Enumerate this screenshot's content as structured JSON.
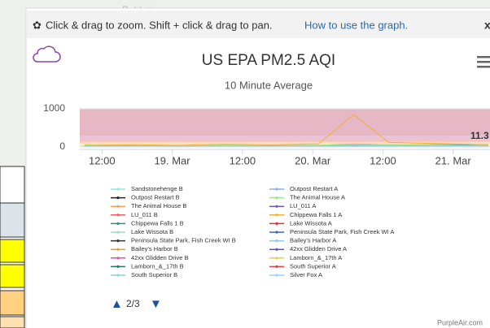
{
  "map_label": "Baldwin",
  "toolbar": {
    "hint": "Click & drag to zoom. Shift + click & drag to pan.",
    "link": "How to use the graph.",
    "close": "x"
  },
  "legend_page": "2/3",
  "footer": "PurpleAir.com",
  "chart_data": {
    "type": "line",
    "title": "US EPA PM2.5 AQI",
    "subtitle": "10 Minute Average",
    "annotation": "11.3",
    "x": [
      9,
      17,
      25,
      33,
      41,
      49,
      55,
      61,
      69,
      78
    ],
    "xlim": [
      8.2,
      78.3
    ],
    "xticks": [
      {
        "value": 12,
        "label": "12:00"
      },
      {
        "value": 24,
        "label": "19. Mar"
      },
      {
        "value": 36,
        "label": "12:00"
      },
      {
        "value": 48,
        "label": "20. Mar"
      },
      {
        "value": 60,
        "label": "12:00"
      },
      {
        "value": 72,
        "label": "21. Mar"
      }
    ],
    "ylim": [
      0,
      1000
    ],
    "yticks": [
      0,
      1000
    ],
    "series": [
      {
        "name": "Sandstonehenge B",
        "color": "#91e8e1",
        "values": [
          10,
          12,
          8,
          15,
          20,
          14,
          18,
          12,
          10,
          9
        ]
      },
      {
        "name": "Outpost Restart B",
        "color": "#222222",
        "values": [
          20,
          25,
          18,
          30,
          22,
          28,
          35,
          40,
          45,
          30
        ]
      },
      {
        "name": "The Animal House B",
        "color": "#f7a35c",
        "values": [
          60,
          40,
          30,
          50,
          35,
          45,
          80,
          60,
          55,
          40
        ]
      },
      {
        "name": "LU_011 B",
        "color": "#f45b5b",
        "values": [
          15,
          10,
          12,
          18,
          14,
          20,
          25,
          22,
          30,
          20
        ]
      },
      {
        "name": "Chippewa Falls 1 B",
        "color": "#2b908f",
        "values": [
          25,
          30,
          20,
          35,
          28,
          40,
          50,
          45,
          60,
          55
        ]
      },
      {
        "name": "Lake Wissota B",
        "color": "#a0d8d0",
        "values": [
          18,
          15,
          20,
          22,
          18,
          25,
          30,
          28,
          35,
          25
        ]
      },
      {
        "name": "Peninsula State Park, Fish Creek WI B",
        "color": "#333333",
        "values": [
          10,
          8,
          12,
          10,
          15,
          12,
          18,
          15,
          20,
          14
        ]
      },
      {
        "name": "Bailey's Harbor B",
        "color": "#e4a040",
        "values": [
          30,
          25,
          35,
          28,
          40,
          32,
          45,
          38,
          50,
          35
        ]
      },
      {
        "name": "42xx Glidden Drive B",
        "color": "#e0529c",
        "values": [
          12,
          15,
          10,
          18,
          14,
          16,
          22,
          20,
          25,
          18
        ]
      },
      {
        "name": "Lamborn_&_17th B",
        "color": "#1f7a70",
        "values": [
          20,
          18,
          22,
          25,
          20,
          28,
          30,
          35,
          40,
          30
        ]
      },
      {
        "name": "South Superior B",
        "color": "#8ecfe0",
        "values": [
          8,
          10,
          6,
          12,
          10,
          14,
          15,
          12,
          18,
          12
        ]
      },
      {
        "name": "Outpost Restart A",
        "color": "#7cb5ec",
        "values": [
          22,
          28,
          20,
          32,
          24,
          30,
          38,
          42,
          48,
          32
        ]
      },
      {
        "name": "The Animal House A",
        "color": "#90ed7d",
        "values": [
          55,
          38,
          28,
          48,
          32,
          42,
          75,
          58,
          52,
          38
        ]
      },
      {
        "name": "LU_011 A",
        "color": "#6a5acd",
        "values": [
          14,
          9,
          11,
          17,
          13,
          19,
          24,
          21,
          28,
          19
        ]
      },
      {
        "name": "Chippewa Falls 1 A",
        "color": "#f0b030",
        "values": [
          40,
          60,
          45,
          70,
          55,
          80,
          850,
          120,
          90,
          60
        ]
      },
      {
        "name": "Lake Wissota A",
        "color": "#e03030",
        "values": [
          16,
          14,
          19,
          21,
          17,
          24,
          28,
          26,
          33,
          24
        ]
      },
      {
        "name": "Peninsula State Park, Fish Creek WI A",
        "color": "#4060d0",
        "values": [
          9,
          7,
          11,
          9,
          14,
          11,
          17,
          14,
          19,
          13
        ]
      },
      {
        "name": "Bailey's Harbor A",
        "color": "#8cc8f0",
        "values": [
          28,
          24,
          33,
          27,
          38,
          30,
          43,
          36,
          48,
          33
        ]
      },
      {
        "name": "42xx Glidden Drive A",
        "color": "#6050c0",
        "values": [
          11,
          14,
          9,
          17,
          13,
          15,
          21,
          19,
          24,
          17
        ]
      },
      {
        "name": "Lamborn_&_17th A",
        "color": "#e8d040",
        "values": [
          19,
          17,
          21,
          24,
          19,
          27,
          29,
          33,
          38,
          29
        ]
      },
      {
        "name": "South Superior A",
        "color": "#e04040",
        "values": [
          7,
          9,
          5,
          11,
          9,
          13,
          14,
          11,
          17,
          11
        ]
      },
      {
        "name": "Silver Fox A",
        "color": "#9ad0f0",
        "values": [
          10,
          12,
          9,
          14,
          11,
          15,
          18,
          16,
          22,
          16
        ]
      }
    ]
  }
}
